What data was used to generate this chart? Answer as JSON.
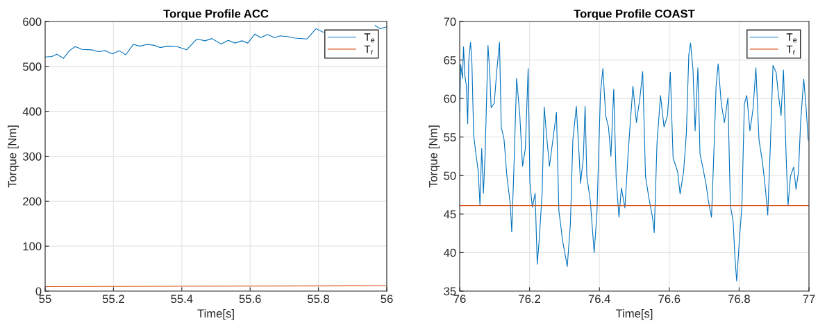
{
  "chart_data": [
    {
      "type": "line",
      "title": "Torque Profile ACC",
      "xlabel": "Time[s]",
      "ylabel": "Torque [Nm]",
      "xlim": [
        55,
        56
      ],
      "ylim": [
        0,
        600
      ],
      "xticks": [
        55,
        55.2,
        55.4,
        55.6,
        55.8,
        56
      ],
      "yticks": [
        0,
        100,
        200,
        300,
        400,
        500,
        600
      ],
      "grid": true,
      "legend": "top right",
      "series": [
        {
          "name": "T$_{e}$",
          "color": "#0072bd",
          "x": [
            55.0,
            55.02,
            55.034,
            55.054,
            55.071,
            55.088,
            55.108,
            55.136,
            55.156,
            55.176,
            55.197,
            55.217,
            55.236,
            55.258,
            55.278,
            55.298,
            55.319,
            55.336,
            55.359,
            55.386,
            55.414,
            55.444,
            55.468,
            55.488,
            55.515,
            55.536,
            55.556,
            55.576,
            55.593,
            55.614,
            55.631,
            55.651,
            55.671,
            55.688,
            55.712,
            55.732,
            55.766,
            55.793,
            55.814,
            55.827,
            55.85,
            55.88,
            55.95,
            55.966,
            55.98,
            56.0
          ],
          "values": [
            521,
            522,
            527,
            518,
            535,
            544,
            538,
            537,
            533,
            535,
            528,
            535,
            526,
            549,
            545,
            549,
            547,
            542,
            545,
            544,
            537,
            561,
            557,
            562,
            550,
            558,
            552,
            557,
            552,
            572,
            564,
            571,
            564,
            568,
            566,
            563,
            561,
            584,
            576,
            null,
            null,
            null,
            null,
            591,
            584,
            588
          ]
        },
        {
          "name": "T$_{r}$",
          "color": "#d95319",
          "x": [
            55,
            56
          ],
          "values": [
            10,
            12
          ]
        }
      ]
    },
    {
      "type": "line",
      "title": "Torque Profile COAST",
      "xlabel": "Time[s]",
      "ylabel": "Torque [Nm]",
      "xlim": [
        76,
        77
      ],
      "ylim": [
        35,
        70
      ],
      "xticks": [
        76,
        76.2,
        76.4,
        76.6,
        76.8,
        77
      ],
      "yticks": [
        35,
        40,
        45,
        50,
        55,
        60,
        65,
        70
      ],
      "grid": true,
      "legend": "top right",
      "series": [
        {
          "name": "T$_{e}$",
          "color": "#0072bd",
          "x": [
            76.0,
            76.003,
            76.008,
            76.011,
            76.015,
            76.019,
            76.023,
            76.026,
            76.031,
            76.035,
            76.04,
            76.046,
            76.053,
            76.058,
            76.063,
            76.068,
            76.073,
            76.081,
            76.086,
            76.09,
            76.099,
            76.106,
            76.114,
            76.119,
            76.127,
            76.135,
            76.145,
            76.149,
            76.155,
            76.163,
            76.172,
            76.18,
            76.188,
            76.196,
            76.201,
            76.208,
            76.216,
            76.222,
            76.228,
            76.236,
            76.242,
            76.248,
            76.257,
            76.267,
            76.277,
            76.284,
            76.29,
            76.294,
            76.308,
            76.317,
            76.324,
            76.334,
            76.341,
            76.346,
            76.354,
            76.359,
            76.364,
            76.374,
            76.385,
            76.393,
            76.403,
            76.41,
            76.418,
            76.426,
            76.433,
            76.441,
            76.448,
            76.456,
            76.463,
            76.473,
            76.483,
            76.496,
            76.506,
            76.516,
            76.524,
            76.532,
            76.542,
            76.552,
            76.557,
            76.565,
            76.575,
            76.585,
            76.595,
            76.603,
            76.611,
            76.624,
            76.631,
            76.641,
            76.649,
            76.656,
            76.661,
            76.668,
            76.674,
            76.682,
            76.688,
            76.696,
            76.706,
            76.712,
            76.721,
            76.729,
            76.734,
            76.74,
            76.749,
            76.758,
            76.768,
            76.775,
            76.783,
            76.788,
            76.793,
            76.801,
            76.808,
            76.815,
            76.822,
            76.831,
            76.84,
            76.848,
            76.857,
            76.867,
            76.875,
            76.882,
            76.89,
            76.897,
            76.906,
            76.912,
            76.92,
            76.927,
            76.935,
            76.94,
            76.947,
            76.956,
            76.963,
            76.97,
            76.976,
            76.985,
            76.991,
            76.998
          ],
          "values": [
            58.2,
            64.4,
            62.6,
            66.7,
            62.9,
            61.7,
            56.7,
            64.9,
            67.3,
            64.6,
            55.3,
            53.0,
            50.6,
            46.2,
            53.5,
            47.7,
            53.0,
            66.9,
            63.5,
            58.8,
            59.4,
            63.5,
            67.3,
            56.3,
            54.7,
            50.0,
            46.2,
            42.7,
            50.6,
            62.6,
            57.9,
            51.2,
            53.5,
            63.9,
            49.1,
            45.9,
            47.7,
            38.5,
            41.8,
            47.7,
            58.9,
            55.6,
            51.2,
            54.7,
            58.2,
            45.4,
            43.3,
            41.7,
            38.2,
            43.8,
            54.6,
            59.0,
            53.4,
            49.0,
            52.3,
            59.0,
            49.9,
            46.7,
            40.0,
            45.2,
            60.7,
            63.9,
            57.8,
            56.3,
            52.5,
            61.2,
            49.6,
            44.6,
            48.4,
            45.8,
            53.4,
            61.6,
            56.9,
            60.1,
            63.5,
            49.9,
            47.0,
            44.6,
            42.6,
            54.3,
            60.4,
            56.3,
            57.8,
            63.4,
            52.3,
            50.5,
            47.6,
            50.5,
            55.5,
            65.7,
            67.2,
            63.7,
            55.8,
            64.0,
            52.8,
            51.1,
            48.7,
            46.7,
            44.6,
            54.6,
            61.6,
            64.5,
            59.3,
            56.9,
            60.1,
            46.1,
            44.0,
            39.4,
            36.3,
            41.7,
            46.1,
            59.3,
            60.4,
            55.8,
            58.7,
            64.0,
            54.6,
            51.7,
            48.4,
            44.9,
            54.6,
            64.3,
            63.4,
            60.7,
            57.8,
            63.7,
            52.0,
            46.1,
            49.9,
            51.1,
            48.2,
            50.5,
            56.9,
            62.5,
            59.3,
            54.6
          ]
        },
        {
          "name": "T$_{r}$",
          "color": "#d95319",
          "x": [
            76,
            77
          ],
          "values": [
            46.1,
            46.1
          ]
        }
      ]
    }
  ]
}
